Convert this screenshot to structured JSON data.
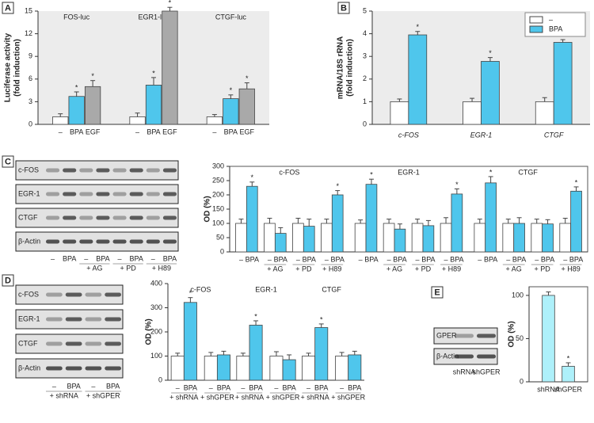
{
  "chart_data": [
    {
      "panel": "A",
      "type": "bar",
      "ylabel": [
        "Luciferase activity",
        "(fold induction)"
      ],
      "categories": [
        "FOS-luc",
        "EGR1-luc",
        "CTGF-luc"
      ],
      "category_label_position": "top",
      "legend": false,
      "plot_background": "#ececec",
      "frame": false,
      "ylim": [
        0,
        15
      ],
      "yticks": [
        0,
        3,
        6,
        9,
        12,
        15
      ],
      "series": [
        {
          "name": "–",
          "color": "#ffffff",
          "values": [
            1,
            1,
            1
          ],
          "errors": [
            0.4,
            0.5,
            0.3
          ],
          "annotations": [
            null,
            null,
            null
          ]
        },
        {
          "name": "BPA",
          "color": "#4fc6ec",
          "values": [
            3.7,
            5.2,
            3.4
          ],
          "errors": [
            0.6,
            1.0,
            0.5
          ],
          "annotations": [
            "*",
            "*",
            "*"
          ]
        },
        {
          "name": "EGF",
          "color": "#a9a9a9",
          "values": [
            5.0,
            15,
            4.7
          ],
          "errors": [
            0.8,
            0.5,
            0.8
          ],
          "annotations": [
            "*",
            "*",
            "*"
          ]
        }
      ]
    },
    {
      "panel": "B",
      "type": "bar",
      "ylabel": [
        "mRNA/18S rRNA",
        "(fold induction)"
      ],
      "categories": [
        "c-FOS",
        "EGR-1",
        "CTGF"
      ],
      "category_label_position": "bottom",
      "legend": true,
      "legend_position": "upper right",
      "plot_background": "#ececec",
      "frame": false,
      "ylim": [
        0,
        5
      ],
      "yticks": [
        0,
        1,
        2,
        3,
        4,
        5
      ],
      "series": [
        {
          "name": "–",
          "color": "#ffffff",
          "values": [
            1,
            1,
            1
          ],
          "errors": [
            0.12,
            0.15,
            0.18
          ],
          "annotations": [
            null,
            null,
            null
          ]
        },
        {
          "name": "BPA",
          "color": "#4fc6ec",
          "values": [
            3.95,
            2.78,
            3.62
          ],
          "errors": [
            0.15,
            0.17,
            0.12
          ],
          "annotations": [
            "*",
            "*",
            "*"
          ]
        }
      ]
    },
    {
      "panel": "C",
      "type": "bar",
      "ylabel": "OD (%)",
      "categories": [
        "c-FOS",
        "EGR-1",
        "CTGF"
      ],
      "category_label_position": "top",
      "legend": false,
      "plot_background": "#ffffff",
      "frame": true,
      "ylim": [
        0,
        300
      ],
      "yticks": [
        0,
        50,
        100,
        150,
        200,
        250,
        300
      ],
      "treatments": [
        null,
        "+ AG",
        "+ PD",
        "+ H89"
      ],
      "series": [
        {
          "name": "–",
          "color": "#ffffff",
          "values": [
            100,
            100,
            100
          ],
          "errors": [
            15,
            12,
            15
          ],
          "annotations": [
            null,
            null,
            null
          ]
        },
        {
          "name": "BPA",
          "color": "#4fc6ec",
          "values": [
            230,
            237,
            242
          ],
          "errors": [
            15,
            18,
            22
          ],
          "annotations": [
            "*",
            "*",
            "*"
          ]
        },
        {
          "name": "–",
          "color": "#ffffff",
          "values": [
            100,
            100,
            100
          ],
          "errors": [
            18,
            15,
            15
          ],
          "annotations": [
            null,
            null,
            null
          ]
        },
        {
          "name": "BPA",
          "color": "#4fc6ec",
          "values": [
            65,
            80,
            100
          ],
          "errors": [
            20,
            18,
            20
          ],
          "annotations": [
            null,
            null,
            null
          ]
        },
        {
          "name": "–",
          "color": "#ffffff",
          "values": [
            100,
            100,
            100
          ],
          "errors": [
            18,
            15,
            15
          ],
          "annotations": [
            null,
            null,
            null
          ]
        },
        {
          "name": "BPA",
          "color": "#4fc6ec",
          "values": [
            90,
            92,
            98
          ],
          "errors": [
            25,
            18,
            15
          ],
          "annotations": [
            null,
            null,
            null
          ]
        },
        {
          "name": "–",
          "color": "#ffffff",
          "values": [
            100,
            100,
            100
          ],
          "errors": [
            15,
            20,
            18
          ],
          "annotations": [
            null,
            null,
            null
          ]
        },
        {
          "name": "BPA",
          "color": "#4fc6ec",
          "values": [
            200,
            203,
            213
          ],
          "errors": [
            15,
            18,
            15
          ],
          "annotations": [
            "*",
            "*",
            "*"
          ]
        }
      ],
      "blot": {
        "rows": [
          "c-FOS",
          "EGR-1",
          "CTGF",
          "β-Actin"
        ],
        "lanes": [
          "–",
          "BPA",
          "–",
          "BPA",
          "–",
          "BPA",
          "–",
          "BPA"
        ],
        "lane_groups": [
          null,
          "+ AG",
          "+ PD",
          "+ H89"
        ]
      }
    },
    {
      "panel": "D",
      "type": "bar",
      "ylabel": "OD (%)",
      "categories": [
        "c-FOS",
        "EGR-1",
        "CTGF"
      ],
      "category_label_position": "top",
      "legend": false,
      "plot_background": "#ffffff",
      "frame": false,
      "ylim": [
        0,
        400
      ],
      "yticks": [
        0,
        100,
        200,
        300,
        400
      ],
      "treatments": [
        "+ shRNA",
        "+ shGPER"
      ],
      "series": [
        {
          "name": "–",
          "color": "#ffffff",
          "values": [
            100,
            100,
            100
          ],
          "errors": [
            12,
            12,
            12
          ],
          "annotations": [
            null,
            null,
            null
          ]
        },
        {
          "name": "BPA",
          "color": "#4fc6ec",
          "values": [
            322,
            228,
            218
          ],
          "errors": [
            20,
            18,
            15
          ],
          "annotations": [
            "*",
            "*",
            "*"
          ]
        },
        {
          "name": "–",
          "color": "#ffffff",
          "values": [
            100,
            100,
            100
          ],
          "errors": [
            15,
            18,
            15
          ],
          "annotations": [
            null,
            null,
            null
          ]
        },
        {
          "name": "BPA",
          "color": "#4fc6ec",
          "values": [
            105,
            85,
            105
          ],
          "errors": [
            15,
            20,
            15
          ],
          "annotations": [
            null,
            null,
            null
          ]
        }
      ],
      "blot": {
        "rows": [
          "c-FOS",
          "EGR-1",
          "CTGF",
          "β-Actin"
        ],
        "lanes": [
          "–",
          "BPA",
          "–",
          "BPA"
        ],
        "lane_groups": [
          "+ shRNA",
          "+ shGPER"
        ]
      }
    },
    {
      "panel": "E",
      "type": "bar",
      "ylabel": "OD (%)",
      "categories": [
        null
      ],
      "category_label_position": "bottom",
      "legend": false,
      "plot_background": "#ffffff",
      "frame": true,
      "ylim": [
        0,
        110
      ],
      "yticks": [
        0,
        50,
        100
      ],
      "series": [
        {
          "name": "shRNA",
          "color": "#aef0fa",
          "values": [
            100
          ],
          "errors": [
            4
          ],
          "annotations": [
            null
          ]
        },
        {
          "name": "shGPER",
          "color": "#aef0fa",
          "values": [
            18
          ],
          "errors": [
            4
          ],
          "annotations": [
            "*"
          ]
        }
      ],
      "blot": {
        "rows": [
          "GPER",
          "β-Actin"
        ],
        "lanes": [
          "shRNA",
          "shGPER"
        ]
      }
    }
  ]
}
